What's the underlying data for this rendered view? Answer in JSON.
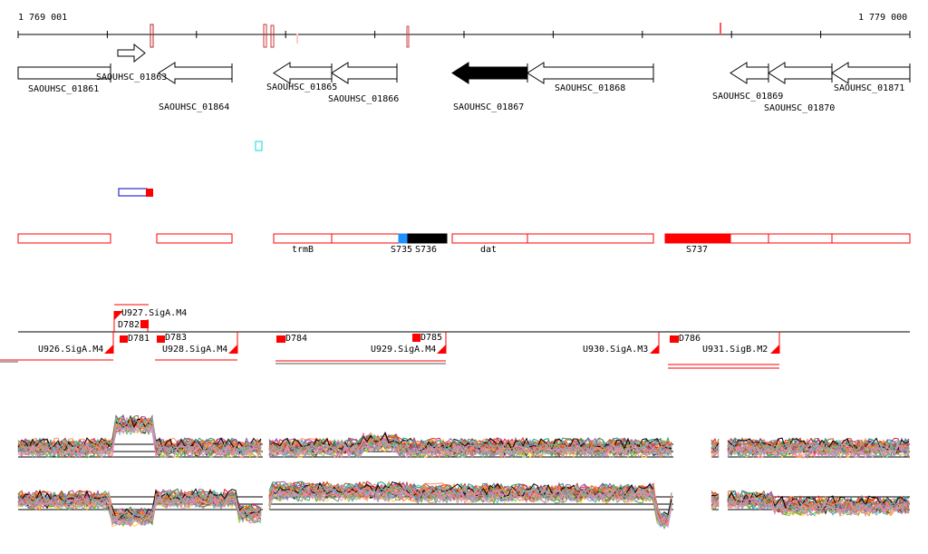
{
  "axis": {
    "start_label": "1 769 001",
    "end_label": "1 779 000"
  },
  "genes": [
    {
      "id": "SAOUHSC_01861"
    },
    {
      "id": "SAOUHSC_01863"
    },
    {
      "id": "SAOUHSC_01864"
    },
    {
      "id": "SAOUHSC_01865"
    },
    {
      "id": "SAOUHSC_01866"
    },
    {
      "id": "SAOUHSC_01867"
    },
    {
      "id": "SAOUHSC_01868"
    },
    {
      "id": "SAOUHSC_01869"
    },
    {
      "id": "SAOUHSC_01870"
    },
    {
      "id": "SAOUHSC_01871"
    }
  ],
  "features": {
    "trmB": "trmB",
    "s735": "S735",
    "s736": "S736",
    "dat": "dat",
    "s737": "S737"
  },
  "segments": {
    "u926": "U926.SigA.M4",
    "u927": "U927.SigA.M4",
    "u928": "U928.SigA.M4",
    "u929": "U929.SigA.M4",
    "u930": "U930.SigA.M3",
    "u931": "U931.SigB.M2",
    "d781": "D781",
    "d782": "D782",
    "d783": "D783",
    "d784": "D784",
    "d785": "D785",
    "d786": "D786"
  },
  "colors": {
    "red": "#ff0000",
    "blue": "#1e90ff",
    "black": "#000000"
  }
}
